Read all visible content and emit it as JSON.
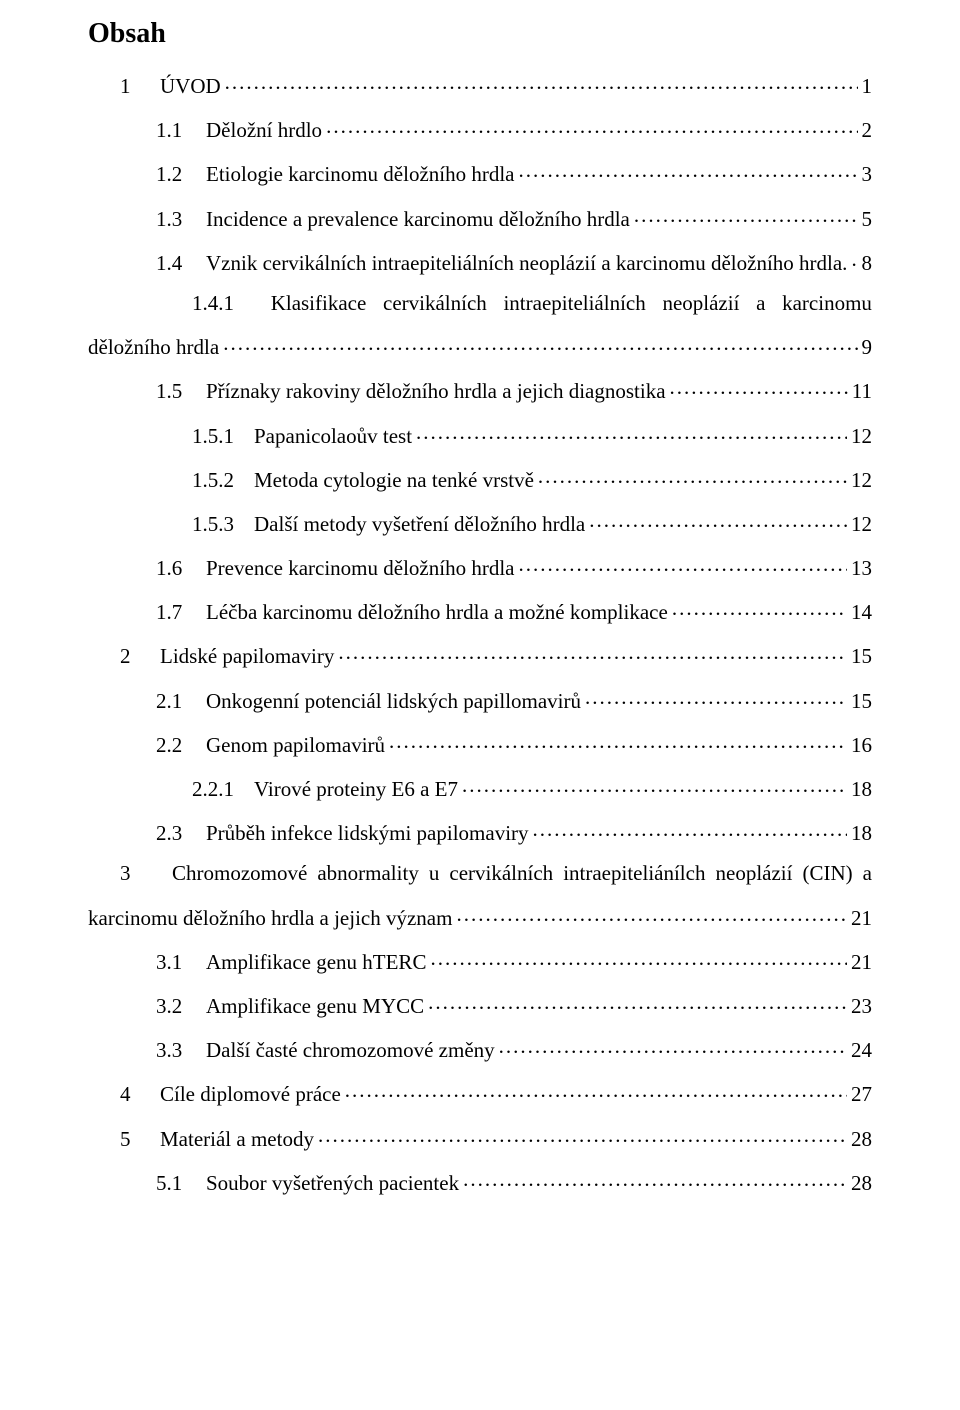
{
  "title": "Obsah",
  "font": {
    "family": "Times New Roman",
    "title_size_pt": 21,
    "body_size_pt": 16
  },
  "colors": {
    "text": "#000000",
    "background": "#ffffff"
  },
  "entries": [
    {
      "level": 1,
      "num": "1",
      "label": "ÚVOD",
      "page": "1"
    },
    {
      "level": 2,
      "num": "1.1",
      "label": "Děložní hrdlo",
      "page": "2"
    },
    {
      "level": 2,
      "num": "1.2",
      "label": "Etiologie karcinomu děložního hrdla",
      "page": "3"
    },
    {
      "level": 2,
      "num": "1.3",
      "label": "Incidence a prevalence karcinomu děložního hrdla",
      "page": "5"
    },
    {
      "level": 2,
      "num": "1.4",
      "label": "Vznik cervikálních intraepiteliálních neoplázií a karcinomu děložního hrdla.",
      "page": "8"
    },
    {
      "level": 3,
      "num": "1.4.1",
      "wrap": true,
      "line1_pre": "Klasifikace",
      "line1_mid": "cervikálních",
      "line1_mid2": "intraepiteliálních",
      "line1_mid3": "neoplázií",
      "line1_mid4": "a",
      "line1_post": "karcinomu",
      "line2": "děložního hrdla",
      "page": "9",
      "wrap_indent": 0
    },
    {
      "level": 2,
      "num": "1.5",
      "label": "Příznaky rakoviny děložního hrdla a jejich diagnostika",
      "page": "11"
    },
    {
      "level": 3,
      "num": "1.5.1",
      "label": "Papanicolaoův test",
      "page": "12"
    },
    {
      "level": 3,
      "num": "1.5.2",
      "label": "Metoda cytologie na tenké vrstvě",
      "page": "12"
    },
    {
      "level": 3,
      "num": "1.5.3",
      "label": "Další metody vyšetření děložního hrdla",
      "page": "12"
    },
    {
      "level": 2,
      "num": "1.6",
      "label": "Prevence karcinomu děložního hrdla",
      "page": "13"
    },
    {
      "level": 2,
      "num": "1.7",
      "label": "Léčba karcinomu děložního hrdla a možné komplikace",
      "page": "14"
    },
    {
      "level": 1,
      "num": "2",
      "label": "Lidské papilomaviry",
      "page": "15"
    },
    {
      "level": 2,
      "num": "2.1",
      "label": "Onkogenní potenciál lidských papillomavirů",
      "page": "15"
    },
    {
      "level": 2,
      "num": "2.2",
      "label": "Genom papilomavirů",
      "page": "16"
    },
    {
      "level": 3,
      "num": "2.2.1",
      "label": "Virové proteiny E6 a E7",
      "page": "18"
    },
    {
      "level": 2,
      "num": "2.3",
      "label": "Průběh infekce lidskými papilomaviry",
      "page": "18"
    },
    {
      "level": 1,
      "num": "3",
      "wrap": true,
      "line1_pre": "Chromozomové abnormality u cervikálních intraepiteliánílch neoplázií (CIN) a",
      "line2": "karcinomu děložního hrdla a jejich význam",
      "page": "21",
      "wrap_indent": 0,
      "justify": true
    },
    {
      "level": 2,
      "num": "3.1",
      "label": "Amplifikace genu hTERC",
      "page": "21"
    },
    {
      "level": 2,
      "num": "3.2",
      "label": "Amplifikace genu MYCC",
      "page": "23"
    },
    {
      "level": 2,
      "num": "3.3",
      "label": "Další časté chromozomové změny",
      "page": "24"
    },
    {
      "level": 1,
      "num": "4",
      "label": "Cíle diplomové práce",
      "page": "27"
    },
    {
      "level": 1,
      "num": "5",
      "label": "Materiál a metody",
      "page": "28"
    },
    {
      "level": 2,
      "num": "5.1",
      "label": "Soubor vyšetřených pacientek",
      "page": "28"
    }
  ]
}
